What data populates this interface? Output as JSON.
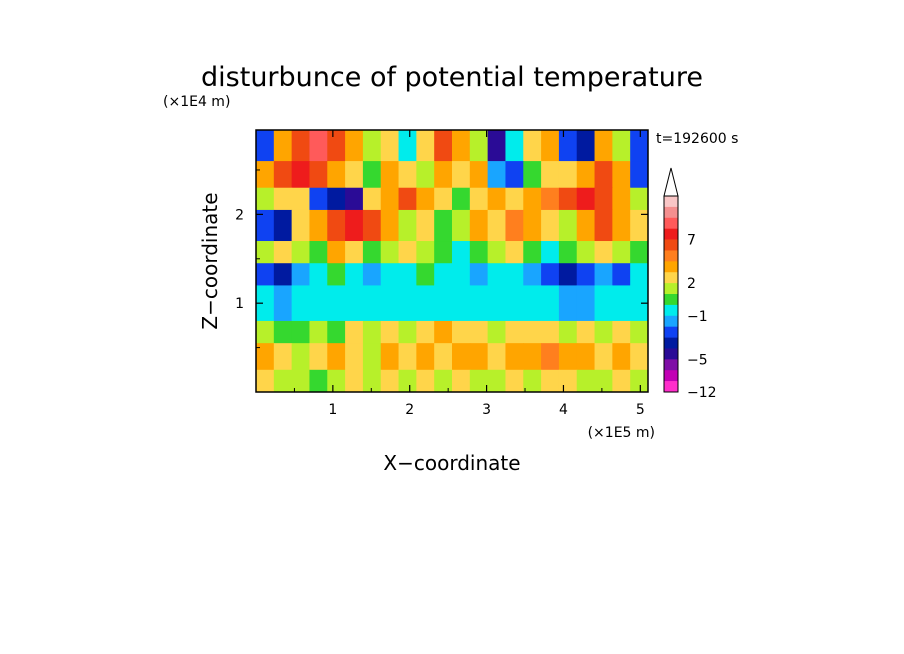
{
  "chart_data": {
    "type": "heatmap",
    "title": "disturbunce of potential temperature",
    "time_label": "t=192600 s",
    "xlabel": "X−coordinate",
    "ylabel": "Z−coordinate",
    "x_unit": "(×1E5 m)",
    "y_unit": "(×1E4 m)",
    "xlim": [
      0,
      5.1
    ],
    "ylim": [
      0,
      2.95
    ],
    "x_ticks": [
      1,
      2,
      3,
      4,
      5
    ],
    "y_ticks": [
      1,
      2
    ],
    "colorbar": {
      "ticks": [
        {
          "value": 7,
          "label": "7"
        },
        {
          "value": 2,
          "label": "2"
        },
        {
          "value": -1,
          "label": "−1"
        },
        {
          "value": -5,
          "label": "−5"
        },
        {
          "value": -12,
          "label": "−12"
        }
      ],
      "levels": [
        {
          "value": 10,
          "color": "#f9c6c6"
        },
        {
          "value": 9,
          "color": "#f48f8f"
        },
        {
          "value": 8,
          "color": "#ff5a5a"
        },
        {
          "value": 7,
          "color": "#ee1c1c"
        },
        {
          "value": 6,
          "color": "#f04a12"
        },
        {
          "value": 5,
          "color": "#ff7f1e"
        },
        {
          "value": 3,
          "color": "#ffa500"
        },
        {
          "value": 2,
          "color": "#ffd54a"
        },
        {
          "value": 1,
          "color": "#b7f02a"
        },
        {
          "value": 0,
          "color": "#35d82f"
        },
        {
          "value": -1,
          "color": "#00ecec"
        },
        {
          "value": -2,
          "color": "#19a5ff"
        },
        {
          "value": -3,
          "color": "#0f42f2"
        },
        {
          "value": -4,
          "color": "#001aa0"
        },
        {
          "value": -5,
          "color": "#2a0b96"
        },
        {
          "value": -7,
          "color": "#7f0ea6"
        },
        {
          "value": -9,
          "color": "#c200b4"
        },
        {
          "value": -12,
          "color": "#ff2ecb"
        }
      ],
      "extend": "max"
    },
    "bands": [
      {
        "z_top": 2.95,
        "z_bot": 2.6,
        "values": [
          -3,
          3,
          6,
          8,
          6,
          3,
          1,
          2,
          -1,
          2,
          6,
          3,
          1,
          -5,
          -1,
          2,
          3,
          -3,
          -4,
          3,
          1,
          -3
        ]
      },
      {
        "z_top": 2.6,
        "z_bot": 2.3,
        "values": [
          3,
          6,
          7,
          6,
          3,
          2,
          0,
          3,
          2,
          1,
          3,
          2,
          3,
          -2,
          -3,
          0,
          2,
          2,
          3,
          6,
          3,
          -3
        ]
      },
      {
        "z_top": 2.3,
        "z_bot": 2.05,
        "values": [
          1,
          2,
          2,
          -3,
          -4,
          -5,
          2,
          3,
          6,
          3,
          2,
          0,
          2,
          3,
          2,
          3,
          5,
          6,
          7,
          6,
          3,
          1
        ]
      },
      {
        "z_top": 2.05,
        "z_bot": 1.7,
        "values": [
          -3,
          -4,
          2,
          3,
          6,
          7,
          6,
          3,
          1,
          2,
          0,
          1,
          3,
          2,
          5,
          3,
          2,
          1,
          3,
          6,
          3,
          2
        ]
      },
      {
        "z_top": 1.7,
        "z_bot": 1.45,
        "values": [
          1,
          2,
          1,
          0,
          3,
          2,
          0,
          1,
          2,
          1,
          0,
          -1,
          0,
          1,
          2,
          0,
          -1,
          0,
          1,
          2,
          1,
          0
        ]
      },
      {
        "z_top": 1.45,
        "z_bot": 1.2,
        "values": [
          -3,
          -4,
          -2,
          -1,
          0,
          -1,
          -2,
          -1,
          -1,
          0,
          -1,
          -1,
          -2,
          -1,
          -1,
          -2,
          -3,
          -4,
          -3,
          -2,
          -3,
          -1
        ]
      },
      {
        "z_top": 1.2,
        "z_bot": 0.8,
        "values": [
          -1,
          -2,
          -1,
          -1,
          -1,
          -1,
          -1,
          -1,
          -1,
          -1,
          -1,
          -1,
          -1,
          -1,
          -1,
          -1,
          -1,
          -2,
          -2,
          -1,
          -1,
          -1
        ]
      },
      {
        "z_top": 0.8,
        "z_bot": 0.55,
        "values": [
          1,
          0,
          0,
          1,
          0,
          2,
          1,
          2,
          1,
          2,
          3,
          2,
          2,
          1,
          2,
          2,
          2,
          1,
          2,
          1,
          2,
          1
        ]
      },
      {
        "z_top": 0.55,
        "z_bot": 0.25,
        "values": [
          3,
          2,
          1,
          2,
          3,
          2,
          1,
          3,
          2,
          3,
          2,
          3,
          3,
          2,
          3,
          3,
          5,
          3,
          3,
          2,
          3,
          2
        ]
      },
      {
        "z_top": 0.25,
        "z_bot": 0.0,
        "values": [
          2,
          1,
          1,
          0,
          1,
          2,
          1,
          2,
          1,
          2,
          1,
          2,
          1,
          1,
          2,
          1,
          2,
          2,
          1,
          1,
          2,
          1
        ]
      }
    ]
  }
}
